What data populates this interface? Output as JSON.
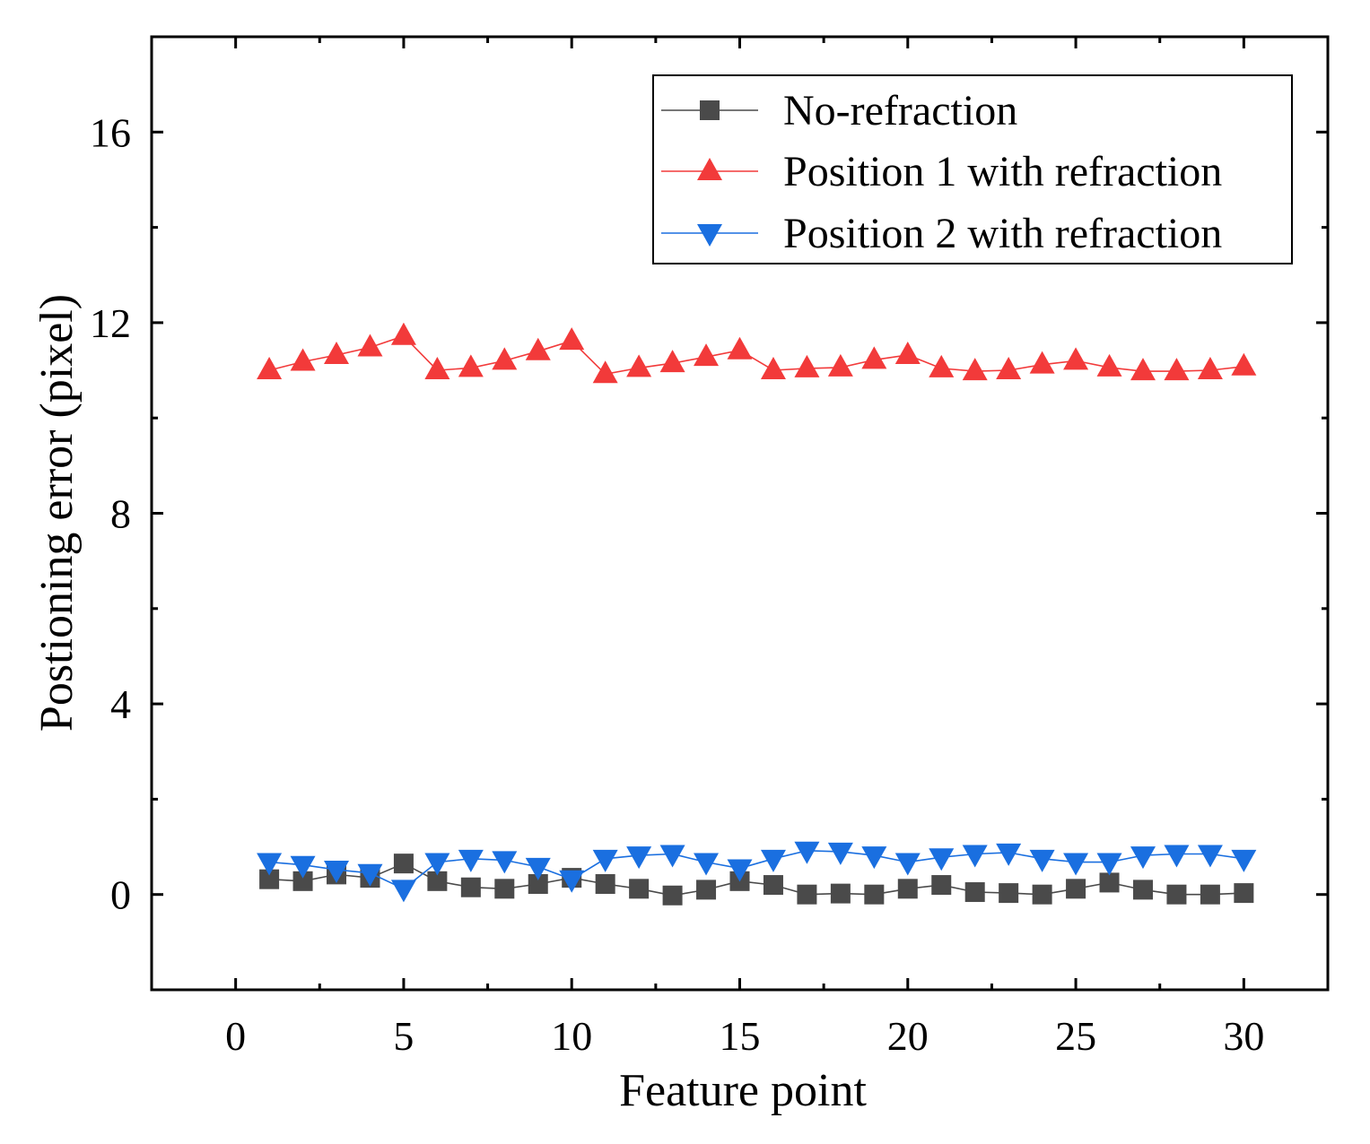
{
  "chart_data": {
    "type": "line",
    "title": "",
    "xlabel": "Feature point",
    "ylabel": "Postioning error (pixel)",
    "xlim": [
      -2.5,
      32.5
    ],
    "ylim": [
      -2,
      18
    ],
    "xticks": [
      0,
      5,
      10,
      15,
      20,
      25,
      30
    ],
    "yticks": [
      0,
      4,
      8,
      12,
      16
    ],
    "xtick_labels": [
      "0",
      "5",
      "10",
      "15",
      "20",
      "25",
      "30"
    ],
    "ytick_labels": [
      "0",
      "4",
      "8",
      "12",
      "16"
    ],
    "grid": false,
    "legend_position": "top-right",
    "x": [
      1,
      2,
      3,
      4,
      5,
      6,
      7,
      8,
      9,
      10,
      11,
      12,
      13,
      14,
      15,
      16,
      17,
      18,
      19,
      20,
      21,
      22,
      23,
      24,
      25,
      26,
      27,
      28,
      29,
      30
    ],
    "series": [
      {
        "name": "No-refraction",
        "marker": "square",
        "color": "#4a4a4a",
        "values": [
          0.32,
          0.28,
          0.42,
          0.35,
          0.65,
          0.28,
          0.15,
          0.12,
          0.22,
          0.35,
          0.22,
          0.12,
          -0.02,
          0.1,
          0.28,
          0.2,
          0.0,
          0.02,
          0.0,
          0.12,
          0.2,
          0.05,
          0.03,
          0.0,
          0.12,
          0.25,
          0.1,
          0.0,
          0.0,
          0.03
        ]
      },
      {
        "name": "Position 1 with refraction",
        "marker": "triangle-up",
        "color": "#f23a3a",
        "values": [
          11.0,
          11.18,
          11.32,
          11.48,
          11.72,
          11.0,
          11.05,
          11.2,
          11.4,
          11.62,
          10.92,
          11.05,
          11.15,
          11.28,
          11.42,
          11.0,
          11.04,
          11.06,
          11.22,
          11.32,
          11.04,
          10.98,
          11.0,
          11.12,
          11.2,
          11.06,
          10.98,
          10.98,
          11.0,
          11.08
        ]
      },
      {
        "name": "Position 2 with refraction",
        "marker": "triangle-down",
        "color": "#1a6fe0",
        "values": [
          0.68,
          0.62,
          0.52,
          0.45,
          0.12,
          0.68,
          0.75,
          0.72,
          0.58,
          0.32,
          0.75,
          0.82,
          0.85,
          0.68,
          0.55,
          0.75,
          0.92,
          0.9,
          0.82,
          0.68,
          0.78,
          0.85,
          0.88,
          0.75,
          0.68,
          0.68,
          0.82,
          0.85,
          0.85,
          0.75
        ]
      }
    ]
  }
}
